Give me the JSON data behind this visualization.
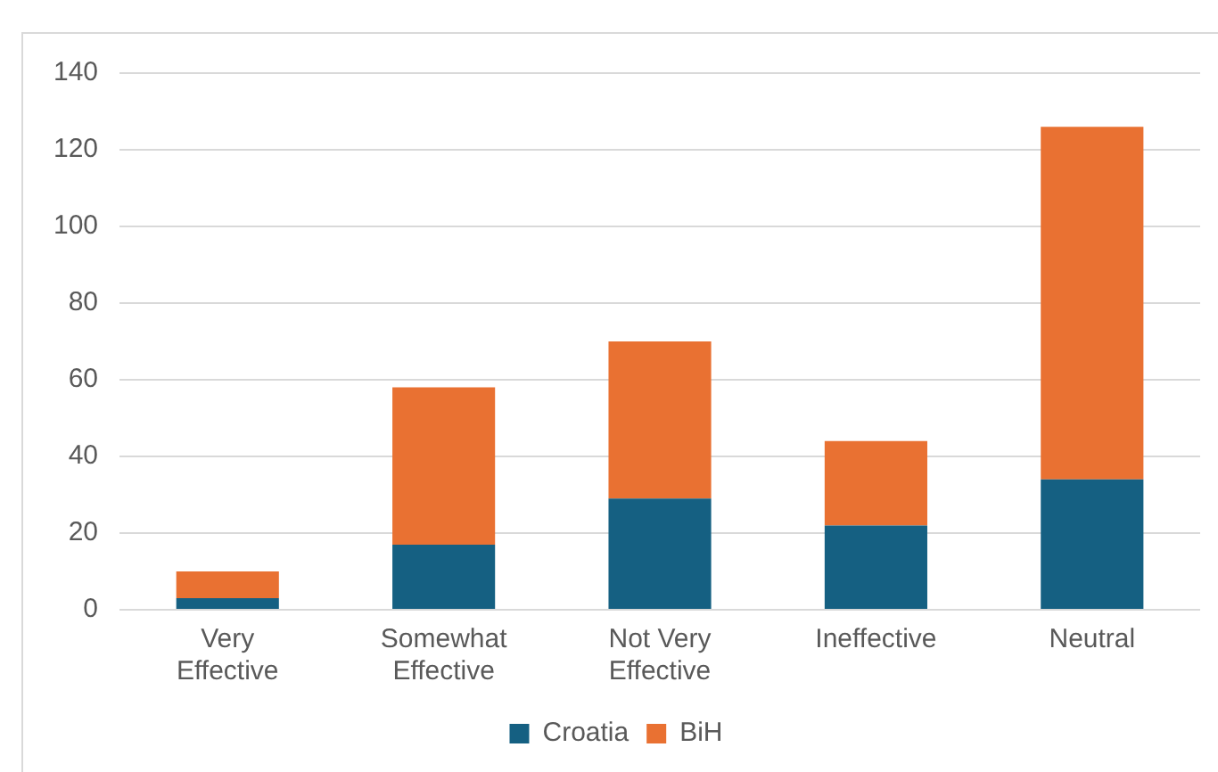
{
  "chart_data": {
    "type": "bar",
    "stacked": true,
    "categories": [
      "Very Effective",
      "Somewhat Effective",
      "Not Very Effective",
      "Ineffective",
      "Neutral"
    ],
    "series": [
      {
        "name": "Croatia",
        "color": "#156082",
        "values": [
          3,
          17,
          29,
          22,
          34
        ]
      },
      {
        "name": "BiH",
        "color": "#e97132",
        "values": [
          7,
          41,
          41,
          22,
          92
        ]
      }
    ],
    "ylim": [
      0,
      140
    ],
    "yticks": [
      0,
      20,
      40,
      60,
      80,
      100,
      120,
      140
    ],
    "grid": "y",
    "legend": "bottom"
  }
}
